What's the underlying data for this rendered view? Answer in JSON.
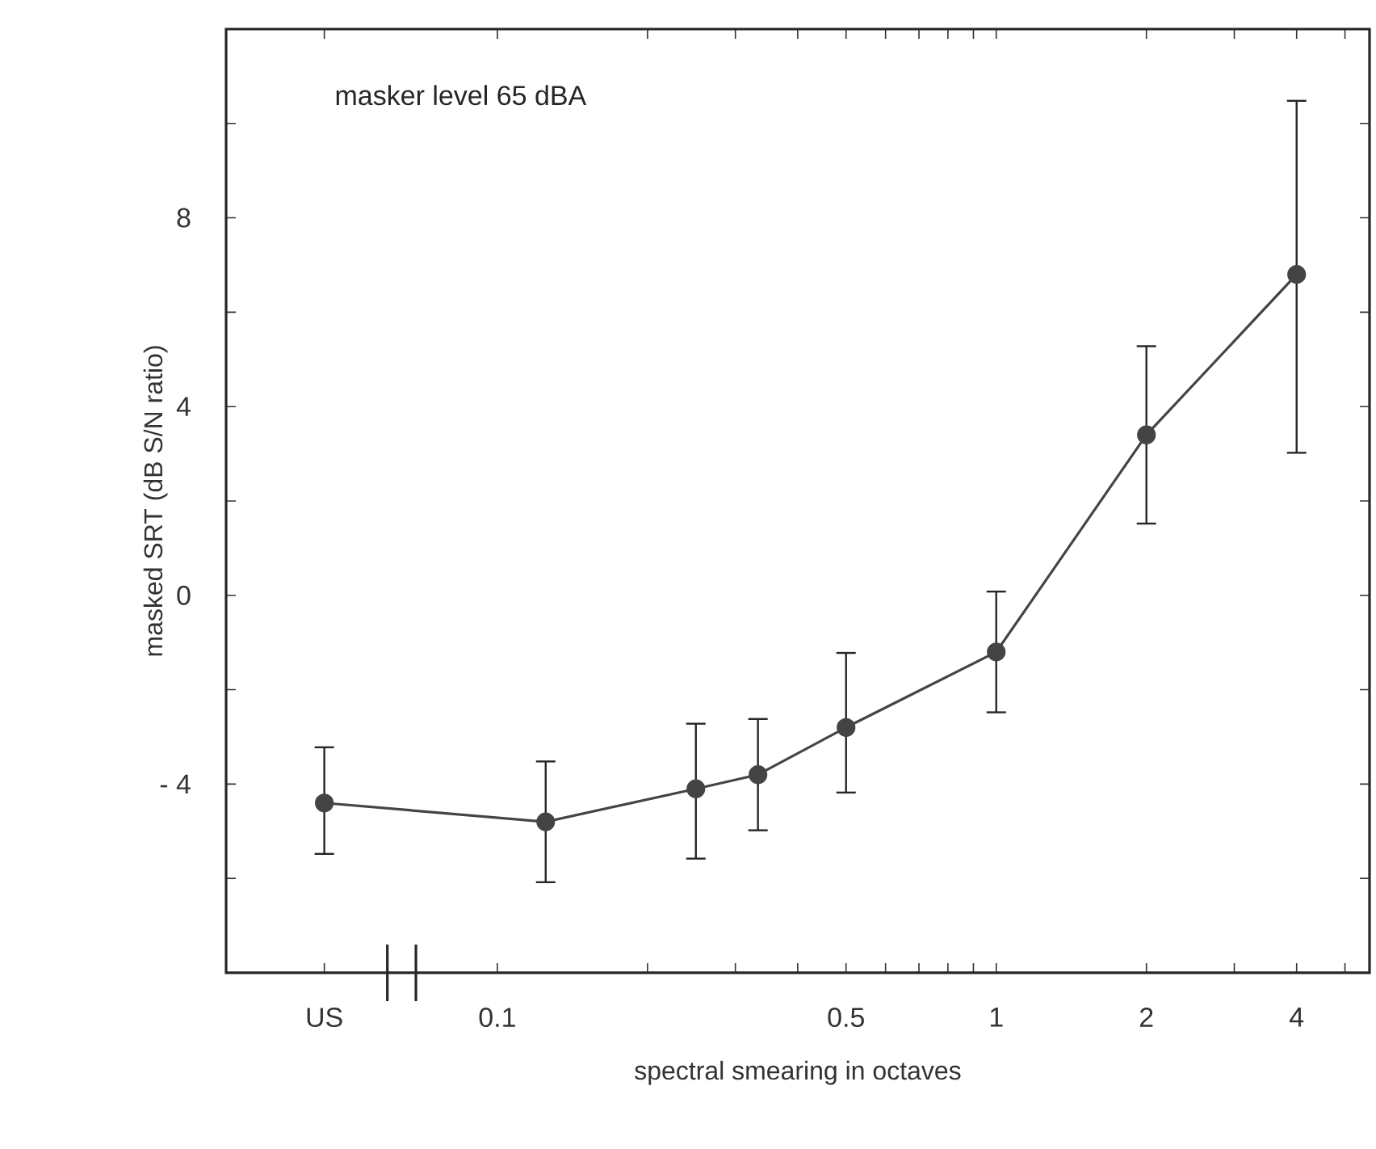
{
  "chart_data": {
    "type": "line",
    "title": "masker level 65 dBA",
    "xlabel": "spectral smearing in octaves",
    "ylabel": "masked SRT (dB S/N ratio)",
    "log": "x",
    "x": [
      0.045,
      0.125,
      0.25,
      0.333,
      0.5,
      1,
      2,
      4
    ],
    "series": [
      {
        "color": "#444444",
        "values": [
          -4.4,
          -4.8,
          -4.1,
          -3.8,
          -2.8,
          -1.2,
          3.4,
          6.8
        ],
        "errors": [
          [
            -5.5,
            -3.2
          ],
          [
            -6.1,
            -3.5
          ],
          [
            -5.6,
            -2.7
          ],
          [
            -5.0,
            -2.6
          ],
          [
            -4.2,
            -1.2
          ],
          [
            -2.5,
            0.1
          ],
          [
            1.5,
            5.3
          ],
          [
            3.0,
            10.5
          ]
        ]
      }
    ],
    "marker": "circle",
    "line_style": "solid",
    "xlim": [
      0.0286,
      5.6
    ],
    "ylim": [
      -8,
      12
    ],
    "xticks": [
      {
        "value": 0.045,
        "label": "US"
      },
      0.1,
      {
        "value": 0.2,
        "label": null
      },
      {
        "value": 0.3,
        "label": null
      },
      {
        "value": 0.4,
        "label": null
      },
      0.5,
      {
        "value": 0.6,
        "label": null
      },
      {
        "value": 0.7,
        "label": null
      },
      {
        "value": 0.8,
        "label": null
      },
      {
        "value": 0.9,
        "label": null
      },
      1,
      2,
      {
        "value": 3,
        "label": null
      },
      4,
      {
        "value": 5,
        "label": null
      }
    ],
    "yticks": [
      {
        "value": -6,
        "label": null
      },
      {
        "value": -4,
        "label": "- 4"
      },
      {
        "value": -2,
        "label": null
      },
      0,
      {
        "value": 2,
        "label": null
      },
      4,
      {
        "value": 6,
        "label": null
      },
      8,
      {
        "value": 10,
        "label": null
      }
    ]
  }
}
